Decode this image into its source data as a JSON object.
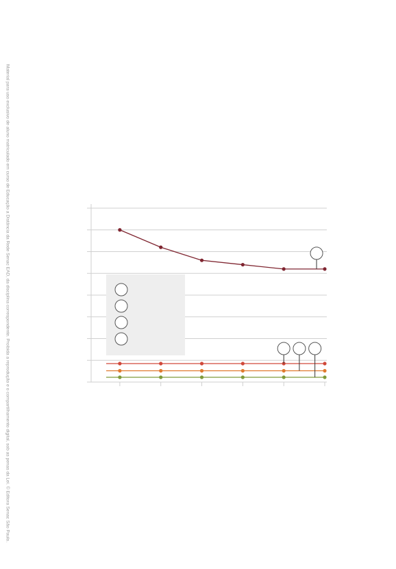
{
  "side_note": "Material para uso exclusivo de aluno matriculado em curso de Educação a Distância da Rede Senac EAD, da disciplina correspondente. Proibida a reprodução e o compartilhamento digital, sob as penas da Lei. © Editora Senac São Paulo.",
  "colors": {
    "series_top": "#7f2530",
    "series_red": "#d0483a",
    "series_orange": "#e07a2e",
    "series_green": "#7f9a3a",
    "grid": "#cfcfcf",
    "legend_box": "#eeeeee",
    "marker_circle": "#555555"
  },
  "chart_data": {
    "type": "line",
    "title": "",
    "xlabel": "",
    "ylabel": "",
    "x": [
      1,
      2,
      3,
      4,
      5,
      6
    ],
    "xlim": [
      0.3,
      6.05
    ],
    "ylim": [
      0,
      8
    ],
    "y_ticks": [
      0,
      1,
      2,
      3,
      4,
      5,
      6,
      7,
      8
    ],
    "grid": true,
    "legend": {
      "placement": "left-middle",
      "entries": 4
    },
    "series": [
      {
        "color_key": "series_top",
        "values": [
          7.0,
          6.2,
          5.6,
          5.4,
          5.2,
          5.2
        ]
      },
      {
        "color_key": "series_red",
        "values": [
          0.85,
          0.85,
          0.85,
          0.85,
          0.85,
          0.85
        ]
      },
      {
        "color_key": "series_orange",
        "values": [
          0.52,
          0.52,
          0.52,
          0.52,
          0.52,
          0.52
        ]
      },
      {
        "color_key": "series_green",
        "values": [
          0.22,
          0.22,
          0.22,
          0.22,
          0.22,
          0.22
        ]
      }
    ],
    "callouts": [
      {
        "series_index": 0,
        "x": 5.8
      },
      {
        "series_index": 1,
        "x": 5.0
      },
      {
        "series_index": 2,
        "x": 5.38
      },
      {
        "series_index": 3,
        "x": 5.76
      }
    ]
  }
}
